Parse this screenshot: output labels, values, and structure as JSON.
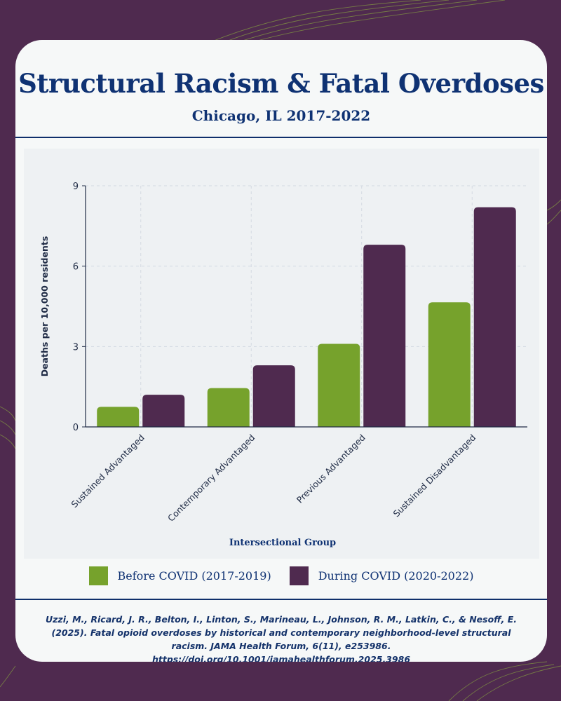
{
  "header": {
    "title": "Structural Racism & Fatal Overdoses",
    "subtitle": "Chicago, IL 2017-2022"
  },
  "colors": {
    "background": "#4f2a4f",
    "card": "#f6f8f8",
    "heading": "#0f3273",
    "before_covid": "#76a22c",
    "during_covid": "#4f2a4f"
  },
  "chart_data": {
    "type": "bar",
    "title": "Structural Racism & Fatal Overdoses",
    "xlabel": "Intersectional Group",
    "ylabel": "Deaths per 10,000 residents",
    "ylim": [
      0,
      9
    ],
    "yticks": [
      0,
      3,
      6,
      9
    ],
    "grid": true,
    "categories": [
      "Sustained Advantaged",
      "Contemporary Advantaged",
      "Previous Advantaged",
      "Sustained Disadvantaged"
    ],
    "series": [
      {
        "name": "Before COVID (2017-2019)",
        "color": "#76a22c",
        "values": [
          0.75,
          1.45,
          3.1,
          4.65
        ]
      },
      {
        "name": "During COVID (2020-2022)",
        "color": "#4f2a4f",
        "values": [
          1.2,
          2.3,
          6.8,
          8.2
        ]
      }
    ],
    "legend": "bottom-center"
  },
  "citation": {
    "text": "Uzzi, M., Ricard, J. R., Belton, I., Linton, S., Marineau, L., Johnson, R. M., Latkin, C., & Nesoff, E. (2025). Fatal opioid overdoses by historical and contemporary neighborhood-level structural racism. JAMA Health Forum, 6(11), e253986.",
    "doi": "https://doi.org/10.1001/jamahealthforum.2025.3986"
  }
}
